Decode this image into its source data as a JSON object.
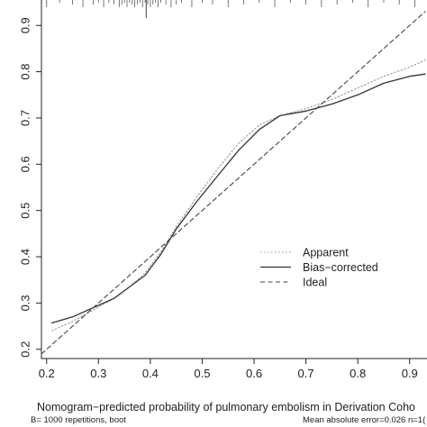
{
  "chart_data": {
    "type": "line",
    "xlabel": "Nomogram−predicted probability of pulmonary embolism in Derivation Coho",
    "ylabel": "",
    "xlim": [
      0.19,
      0.93
    ],
    "ylim": [
      0.18,
      0.955
    ],
    "x_ticks": [
      0.2,
      0.3,
      0.4,
      0.5,
      0.6,
      0.7,
      0.8,
      0.9
    ],
    "x_tick_labels": [
      "0.2",
      "0.3",
      "0.4",
      "0.5",
      "0.6",
      "0.7",
      "0.8",
      "0.9"
    ],
    "y_ticks": [
      0.2,
      0.3,
      0.4,
      0.5,
      0.6,
      0.7,
      0.8,
      0.9
    ],
    "y_tick_labels": [
      "0.2",
      "0.3",
      "0.4",
      "0.5",
      "0.6",
      "0.7",
      "0.8",
      "0.9"
    ],
    "grid": false,
    "legend_position": "center-right",
    "series": [
      {
        "name": "Apparent",
        "style": "dotted",
        "color": "#999999",
        "x": [
          0.21,
          0.25,
          0.29,
          0.33,
          0.36,
          0.39,
          0.42,
          0.45,
          0.49,
          0.53,
          0.57,
          0.61,
          0.65,
          0.7,
          0.75,
          0.8,
          0.85,
          0.9,
          0.93
        ],
        "y": [
          0.24,
          0.26,
          0.285,
          0.31,
          0.335,
          0.365,
          0.41,
          0.465,
          0.53,
          0.59,
          0.645,
          0.685,
          0.705,
          0.72,
          0.74,
          0.765,
          0.79,
          0.81,
          0.825
        ]
      },
      {
        "name": "Bias−corrected",
        "style": "solid",
        "color": "#333333",
        "x": [
          0.21,
          0.25,
          0.29,
          0.33,
          0.36,
          0.39,
          0.42,
          0.45,
          0.49,
          0.53,
          0.57,
          0.61,
          0.65,
          0.7,
          0.75,
          0.8,
          0.85,
          0.9,
          0.93
        ],
        "y": [
          0.257,
          0.27,
          0.29,
          0.31,
          0.335,
          0.36,
          0.405,
          0.46,
          0.52,
          0.575,
          0.63,
          0.675,
          0.705,
          0.715,
          0.73,
          0.75,
          0.775,
          0.79,
          0.795
        ]
      },
      {
        "name": "Ideal",
        "style": "dashed",
        "color": "#444444",
        "x": [
          0.19,
          0.93
        ],
        "y": [
          0.19,
          0.93
        ]
      }
    ],
    "rug_x": [
      0.2,
      0.225,
      0.25,
      0.27,
      0.29,
      0.3,
      0.31,
      0.32,
      0.33,
      0.34,
      0.345,
      0.35,
      0.355,
      0.36,
      0.365,
      0.37,
      0.375,
      0.38,
      0.385,
      0.39,
      0.395,
      0.4,
      0.405,
      0.41,
      0.415,
      0.42,
      0.43,
      0.44,
      0.45,
      0.46,
      0.48,
      0.5,
      0.52,
      0.55,
      0.58,
      0.61,
      0.64,
      0.67,
      0.7,
      0.73,
      0.76,
      0.79,
      0.82,
      0.85,
      0.88,
      0.91
    ],
    "rug_tall_x": [
      0.392
    ]
  },
  "footnotes": {
    "left": "B= 1000 repetitions, boot",
    "right": "Mean absolute error=0.026 n=1("
  }
}
